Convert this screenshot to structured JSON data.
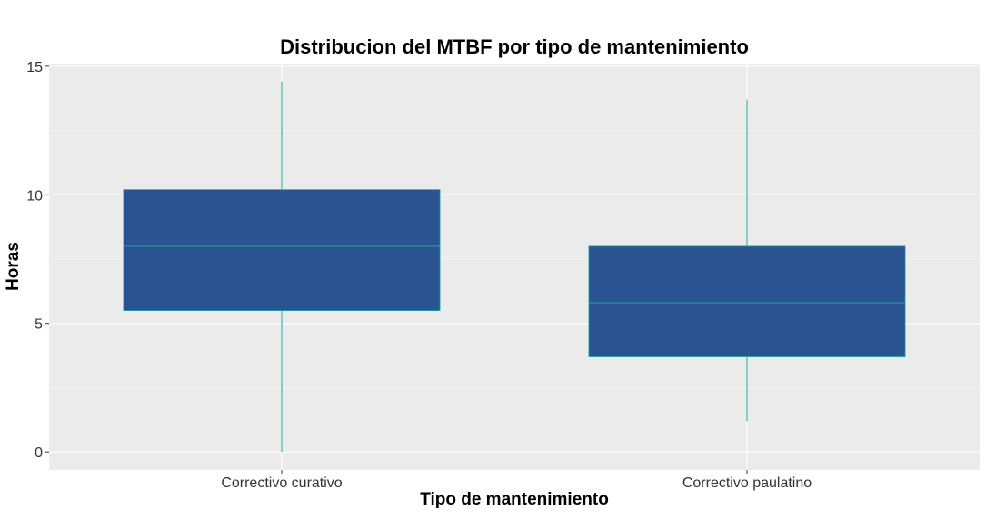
{
  "chart_data": {
    "type": "boxplot",
    "title": "Distribucion del MTBF por tipo de mantenimiento",
    "xlabel": "Tipo de mantenimiento",
    "ylabel": "Horas",
    "categories": [
      "Correctivo curativo",
      "Correctivo paulatino"
    ],
    "boxes": [
      {
        "category": "Correctivo curativo",
        "min": 0.0,
        "q1": 5.5,
        "median": 8.0,
        "q3": 10.2,
        "max": 14.4
      },
      {
        "category": "Correctivo paulatino",
        "min": 1.2,
        "q1": 3.7,
        "median": 5.8,
        "q3": 8.0,
        "max": 13.7
      }
    ],
    "yticks": [
      0,
      5,
      10,
      15
    ],
    "ytick_labels": [
      "0",
      "5",
      "10",
      "15"
    ],
    "ylim": [
      -0.7,
      15.1
    ],
    "grid": true,
    "colors": {
      "panel": "#ebebeb",
      "grid_major": "#ffffff",
      "box_fill": "#2a5491",
      "line": "#1fa89b"
    }
  }
}
